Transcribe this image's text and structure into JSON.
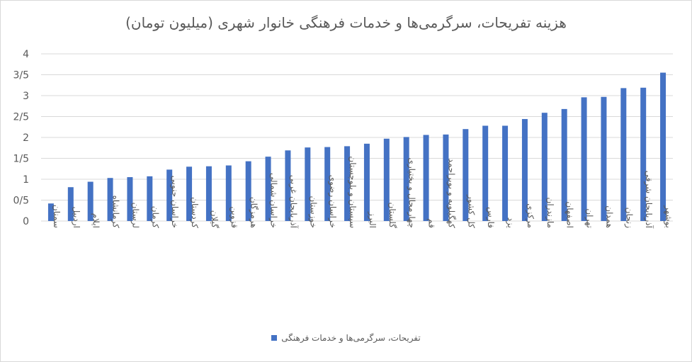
{
  "chart_data": {
    "type": "bar",
    "title": "هزینه تفریحات، سرگرمی‌ها و خدمات فرهنگی خانوار شهری (میلیون تومان)",
    "xlabel": "",
    "ylabel": "",
    "ylim": [
      0,
      4
    ],
    "yticks": [
      "0",
      "0/5",
      "1",
      "1/5",
      "2",
      "2/5",
      "3",
      "3/5",
      "4"
    ],
    "grid": true,
    "legend_position": "bottom",
    "color": "#4472C4",
    "categories": [
      "سمنان",
      "اردبیل",
      "ایلام",
      "کرمانشاه",
      "لرستان",
      "کرمان",
      "خراسان جنوبی",
      "کردستان",
      "گیلان",
      "قزوین",
      "هرمزگان",
      "خراسان شمالی",
      "آذربایجان غربی",
      "خوزستان",
      "خراسان رضوی",
      "سیستان و بلوچستان",
      "البرز",
      "گلستان",
      "چهارمحال و بختیاری",
      "قم",
      "کهگیلویه و بویراحمد",
      "کل کشور",
      "فارس",
      "یزد",
      "مرکزی",
      "مازندران",
      "اصفهان",
      "تهران",
      "همدان",
      "زنجان",
      "آذربایجان شرقی",
      "بوشهر"
    ],
    "series": [
      {
        "name": "تفریحات، سرگرمی‌ها و خدمات فرهنگی",
        "values": [
          0.42,
          0.81,
          0.94,
          1.03,
          1.05,
          1.07,
          1.23,
          1.3,
          1.31,
          1.33,
          1.43,
          1.54,
          1.69,
          1.76,
          1.77,
          1.79,
          1.85,
          1.97,
          2.01,
          2.06,
          2.07,
          2.2,
          2.28,
          2.28,
          2.44,
          2.59,
          2.68,
          2.96,
          2.97,
          3.18,
          3.19,
          3.55
        ]
      }
    ]
  }
}
